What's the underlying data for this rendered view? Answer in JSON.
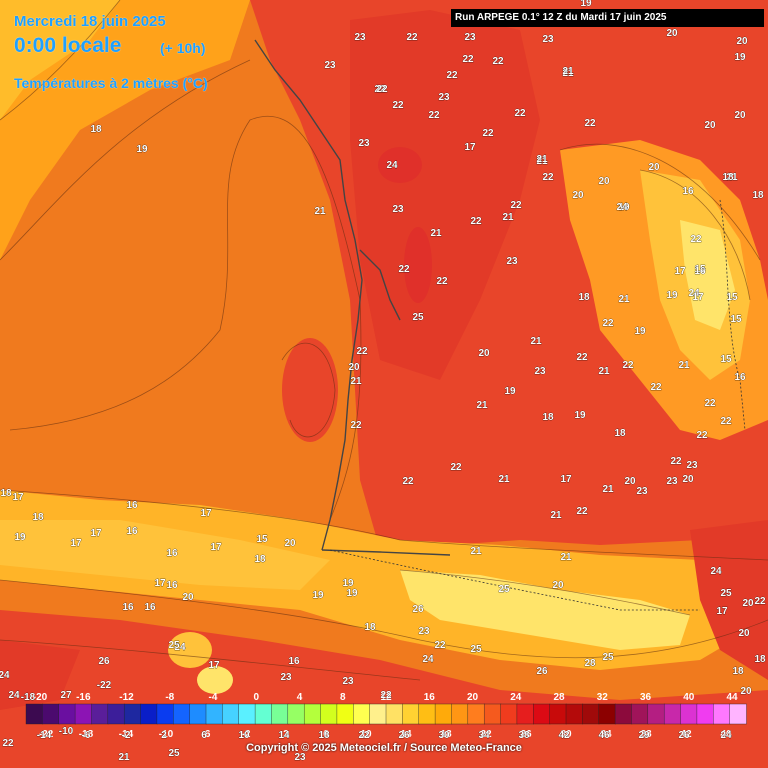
{
  "header": {
    "date": "Mercredi 18 juin 2025",
    "time": "0:00 locale",
    "offset": "(+ 10h)",
    "variable": "Températures à 2 mètres (°C)"
  },
  "run_info": "Run ARPEGE 0.1° 12 Z du Mardi 17 juin 2025",
  "footer": "Copyright © 2025 Meteociel.fr / Source Meteo-France",
  "legend": {
    "labels": [
      "-22",
      "-18",
      "-14",
      "-10",
      "-6",
      "-2",
      "2",
      "6",
      "10",
      "14",
      "18",
      "22",
      "26",
      "30",
      "34",
      "38",
      "42",
      "46"
    ],
    "top_labels": [
      "-20",
      "-16",
      "-12",
      "-8",
      "-4",
      "0",
      "4",
      "8",
      "12",
      "16",
      "20",
      "24",
      "28",
      "32",
      "36",
      "40",
      "44"
    ],
    "colors": [
      "#3c0a50",
      "#4b0a6e",
      "#6a0fa0",
      "#8c14b4",
      "#5a1e9a",
      "#3c1e9a",
      "#1e28a0",
      "#0a1ec8",
      "#0a3cf0",
      "#1464ff",
      "#1e8cff",
      "#32b4ff",
      "#46d2ff",
      "#5af0ff",
      "#64ffd2",
      "#78ff96",
      "#96ff64",
      "#b4ff3c",
      "#d2ff1e",
      "#f0ff14",
      "#ffff50",
      "#fff08c",
      "#ffe164",
      "#ffd232",
      "#ffbe14",
      "#ffaa0a",
      "#ff9614",
      "#ff7d1e",
      "#f55a1e",
      "#f03c1e",
      "#e61e1e",
      "#dc0a14",
      "#c80a0a",
      "#b40a0a",
      "#a00a0a",
      "#8c0000",
      "#8c0a3c",
      "#a0145a",
      "#b41e82",
      "#c828aa",
      "#dc32d2",
      "#f03cf0",
      "#ff78ff",
      "#ffb4ff"
    ]
  },
  "map_labels": [
    "23",
    "22",
    "23",
    "23",
    "20",
    "20",
    "19",
    "21",
    "23",
    "22",
    "22",
    "22",
    "22",
    "22",
    "19",
    "21",
    "22",
    "23",
    "22",
    "22",
    "21",
    "23",
    "22",
    "22",
    "17",
    "21",
    "19",
    "18",
    "20",
    "20",
    "20",
    "20",
    "18",
    "23",
    "24",
    "22",
    "21",
    "22",
    "21",
    "21",
    "20",
    "19",
    "16",
    "18",
    "21",
    "22",
    "23",
    "24",
    "22",
    "15",
    "17",
    "16",
    "18",
    "19",
    "24",
    "22",
    "22",
    "17",
    "15",
    "15",
    "21",
    "25",
    "21",
    "22",
    "20",
    "22",
    "19",
    "16",
    "15",
    "20",
    "22",
    "23",
    "21",
    "22",
    "22",
    "21",
    "21",
    "22",
    "22",
    "22",
    "21",
    "19",
    "18",
    "19",
    "18",
    "22",
    "22",
    "22",
    "21",
    "17",
    "21",
    "20",
    "22",
    "23",
    "23",
    "21",
    "22",
    "23",
    "20",
    "17",
    "18",
    "18",
    "19",
    "17",
    "17",
    "16",
    "16",
    "16",
    "17",
    "17",
    "15",
    "20",
    "18",
    "16",
    "17",
    "16",
    "16",
    "20",
    "19",
    "19",
    "18",
    "19",
    "21",
    "21",
    "20",
    "25",
    "26",
    "23",
    "22",
    "24",
    "25",
    "20",
    "22",
    "17",
    "20",
    "18",
    "18",
    "20",
    "26",
    "24",
    "17",
    "25",
    "16",
    "23",
    "23",
    "22",
    "24",
    "25",
    "26",
    "28",
    "25",
    "24",
    "24",
    "-22",
    "27",
    "-18",
    "-14",
    "-10",
    "-6",
    "-2",
    "2",
    "6",
    "10",
    "14",
    "18",
    "22",
    "26",
    "30",
    "34",
    "38",
    "42",
    "46",
    "29",
    "26",
    "24",
    "22",
    "21",
    "25",
    "23"
  ],
  "colors": {
    "sea_warm": "#f07a1e",
    "land_hot": "#e8452a",
    "cool_zone": "#ffc23a",
    "mountain": "#ffe46a",
    "header_text": "#1ea0ff"
  }
}
